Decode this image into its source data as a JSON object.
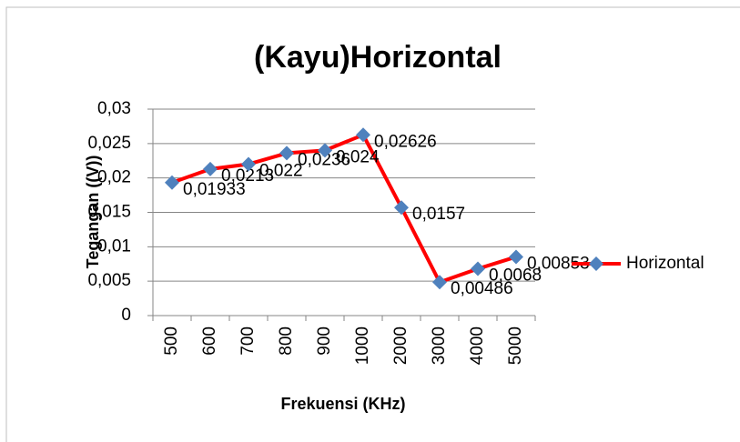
{
  "chart_data": {
    "type": "line",
    "title": "(Kayu)Horizontal",
    "x_label": "Frekuensi (KHz)",
    "y_label": "Tegangan ((V))",
    "categories": [
      "500",
      "600",
      "700",
      "800",
      "900",
      "1000",
      "2000",
      "3000",
      "4000",
      "5000"
    ],
    "series": [
      {
        "name": "Horizontal",
        "color": "#ff0000",
        "marker_color": "#4f81bd",
        "values": [
          0.01933,
          0.0213,
          0.022,
          0.0236,
          0.024,
          0.02626,
          0.0157,
          0.00486,
          0.0068,
          0.00853
        ],
        "value_labels": [
          "0,01933",
          "0,0213",
          "0,022",
          "0,0236",
          "0,024",
          "0,02626",
          "0,0157",
          "0,00486",
          "0,0068",
          "0,00853"
        ]
      }
    ],
    "ylim": [
      0,
      0.03
    ],
    "yticks": [
      0,
      {
        "value": 0.005,
        "label": "0,005"
      },
      {
        "value": 0.01,
        "label": "0,01"
      },
      {
        "value": 0.015,
        "label": "0,015"
      },
      {
        "value": 0.02,
        "label": "0,02"
      },
      {
        "value": 0.025,
        "label": "0,025"
      },
      {
        "value": 0.03,
        "label": "0,03"
      }
    ],
    "grid": true,
    "legend": "right"
  }
}
